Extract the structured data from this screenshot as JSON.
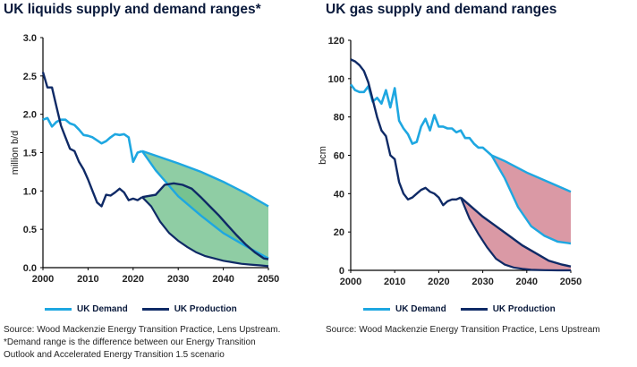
{
  "colors": {
    "demand": "#1ea7e1",
    "production": "#0f2a66",
    "liquids_fill": "#6fbf8a",
    "gas_fill": "#cf7c8c",
    "low_line": "#444444"
  },
  "left": {
    "title": "UK liquids supply and demand ranges*",
    "source_lines": [
      "Source: Wood Mackenzie Energy Transition Practice, Lens Upstream.",
      "*Demand range is the difference between our Energy Transition",
      "Outlook and Accelerated Energy Transition 1.5 scenario"
    ]
  },
  "right": {
    "title": "UK gas supply and demand ranges",
    "source_lines": [
      "Source: Wood Mackenzie Energy Transition Practice, Lens Upstream"
    ]
  },
  "chart_data": [
    {
      "type": "area",
      "title": "UK liquids supply and demand ranges*",
      "xlabel": "",
      "ylabel": "million b/d",
      "xlim": [
        2000,
        2050
      ],
      "ylim": [
        0,
        3.0
      ],
      "xticks": [
        2000,
        2010,
        2020,
        2030,
        2040,
        2050
      ],
      "yticks": [
        0.0,
        0.5,
        1.0,
        1.5,
        2.0,
        2.5,
        3.0
      ],
      "ytick_labels": [
        "0.0",
        "0.5",
        "1.0",
        "1.5",
        "2.0",
        "2.5",
        "3.0"
      ],
      "grid": false,
      "legend": "bottom",
      "series": [
        {
          "name": "UK Demand",
          "x": [
            2000,
            2001,
            2002,
            2003,
            2004,
            2005,
            2006,
            2007,
            2008,
            2009,
            2010,
            2011,
            2012,
            2013,
            2014,
            2015,
            2016,
            2017,
            2018,
            2019,
            2020,
            2021,
            2022
          ],
          "values": [
            1.93,
            1.95,
            1.84,
            1.9,
            1.93,
            1.93,
            1.88,
            1.86,
            1.8,
            1.73,
            1.72,
            1.7,
            1.66,
            1.62,
            1.65,
            1.7,
            1.74,
            1.73,
            1.74,
            1.7,
            1.38,
            1.5,
            1.52
          ]
        },
        {
          "name": "UK Production",
          "x": [
            2000,
            2001,
            2002,
            2003,
            2004,
            2005,
            2006,
            2007,
            2008,
            2009,
            2010,
            2011,
            2012,
            2013,
            2014,
            2015,
            2016,
            2017,
            2018,
            2019,
            2020,
            2021,
            2022
          ],
          "values": [
            2.55,
            2.35,
            2.35,
            2.1,
            1.85,
            1.7,
            1.55,
            1.52,
            1.38,
            1.28,
            1.15,
            1.0,
            0.85,
            0.8,
            0.95,
            0.94,
            0.98,
            1.03,
            0.98,
            0.88,
            0.9,
            0.88,
            0.92
          ]
        },
        {
          "name": "demand_range_high",
          "x": [
            2022,
            2025,
            2030,
            2035,
            2040,
            2045,
            2050
          ],
          "values": [
            1.52,
            1.46,
            1.36,
            1.25,
            1.12,
            0.97,
            0.8
          ]
        },
        {
          "name": "demand_range_low",
          "x": [
            2022,
            2025,
            2030,
            2035,
            2040,
            2045,
            2050
          ],
          "values": [
            1.52,
            1.27,
            0.93,
            0.68,
            0.45,
            0.28,
            0.12
          ]
        },
        {
          "name": "production_range_high",
          "x": [
            2022,
            2025,
            2027,
            2029,
            2031,
            2033,
            2035,
            2037,
            2039,
            2041,
            2043,
            2045,
            2047,
            2049,
            2050
          ],
          "values": [
            0.92,
            0.95,
            1.08,
            1.1,
            1.08,
            1.03,
            0.92,
            0.8,
            0.68,
            0.55,
            0.42,
            0.3,
            0.2,
            0.12,
            0.11
          ]
        },
        {
          "name": "production_range_low",
          "x": [
            2022,
            2024,
            2026,
            2028,
            2030,
            2032,
            2034,
            2036,
            2038,
            2040,
            2042,
            2044,
            2046,
            2048,
            2050
          ],
          "values": [
            0.92,
            0.8,
            0.6,
            0.45,
            0.35,
            0.27,
            0.2,
            0.15,
            0.12,
            0.09,
            0.07,
            0.05,
            0.04,
            0.03,
            0.02
          ]
        }
      ]
    },
    {
      "type": "area",
      "title": "UK gas supply and demand ranges",
      "xlabel": "",
      "ylabel": "bcm",
      "xlim": [
        2000,
        2050
      ],
      "ylim": [
        0,
        120
      ],
      "xticks": [
        2000,
        2010,
        2020,
        2030,
        2040,
        2050
      ],
      "yticks": [
        0,
        20,
        40,
        60,
        80,
        100,
        120
      ],
      "ytick_labels": [
        "0",
        "20",
        "40",
        "60",
        "80",
        "100",
        "120"
      ],
      "grid": false,
      "legend": "bottom",
      "series": [
        {
          "name": "UK Demand",
          "x": [
            2000,
            2001,
            2002,
            2003,
            2004,
            2005,
            2006,
            2007,
            2008,
            2009,
            2010,
            2011,
            2012,
            2013,
            2014,
            2015,
            2016,
            2017,
            2018,
            2019,
            2020,
            2021,
            2022,
            2023,
            2024,
            2025,
            2026,
            2027,
            2028,
            2029,
            2030,
            2031,
            2032
          ],
          "values": [
            97,
            94,
            93,
            93,
            96,
            88,
            90,
            87,
            94,
            85,
            95,
            78,
            74,
            71,
            66,
            67,
            75,
            79,
            73,
            81,
            75,
            75,
            74,
            74,
            72,
            73,
            69,
            69,
            66,
            64,
            64,
            62,
            60
          ]
        },
        {
          "name": "UK Production",
          "x": [
            2000,
            2001,
            2002,
            2003,
            2004,
            2005,
            2006,
            2007,
            2008,
            2009,
            2010,
            2011,
            2012,
            2013,
            2014,
            2015,
            2016,
            2017,
            2018,
            2019,
            2020,
            2021,
            2022,
            2023,
            2024,
            2025
          ],
          "values": [
            110,
            109,
            107,
            104,
            98,
            89,
            80,
            73,
            70,
            60,
            58,
            46,
            40,
            37,
            38,
            40,
            42,
            43,
            41,
            40,
            38,
            34,
            36,
            37,
            37,
            38
          ]
        },
        {
          "name": "demand_range_high",
          "x": [
            2032,
            2035,
            2040,
            2045,
            2050
          ],
          "values": [
            60,
            57,
            51,
            46,
            41
          ]
        },
        {
          "name": "demand_range_low",
          "x": [
            2032,
            2035,
            2038,
            2041,
            2044,
            2047,
            2050
          ],
          "values": [
            60,
            48,
            33,
            23,
            18,
            15,
            14
          ]
        },
        {
          "name": "production_range_high",
          "x": [
            2025,
            2027,
            2030,
            2033,
            2036,
            2039,
            2042,
            2045,
            2048,
            2050
          ],
          "values": [
            38,
            34,
            28,
            23,
            18,
            13,
            9,
            5,
            3,
            2
          ]
        },
        {
          "name": "production_range_low",
          "x": [
            2025,
            2027,
            2029,
            2031,
            2033,
            2035,
            2037,
            2039,
            2041,
            2044,
            2047,
            2050
          ],
          "values": [
            38,
            27,
            19,
            12,
            6,
            3,
            1.5,
            0.8,
            0.3,
            0.1,
            0,
            0
          ]
        }
      ]
    }
  ],
  "legend": {
    "demand_label": "UK Demand",
    "production_label": "UK Production"
  }
}
